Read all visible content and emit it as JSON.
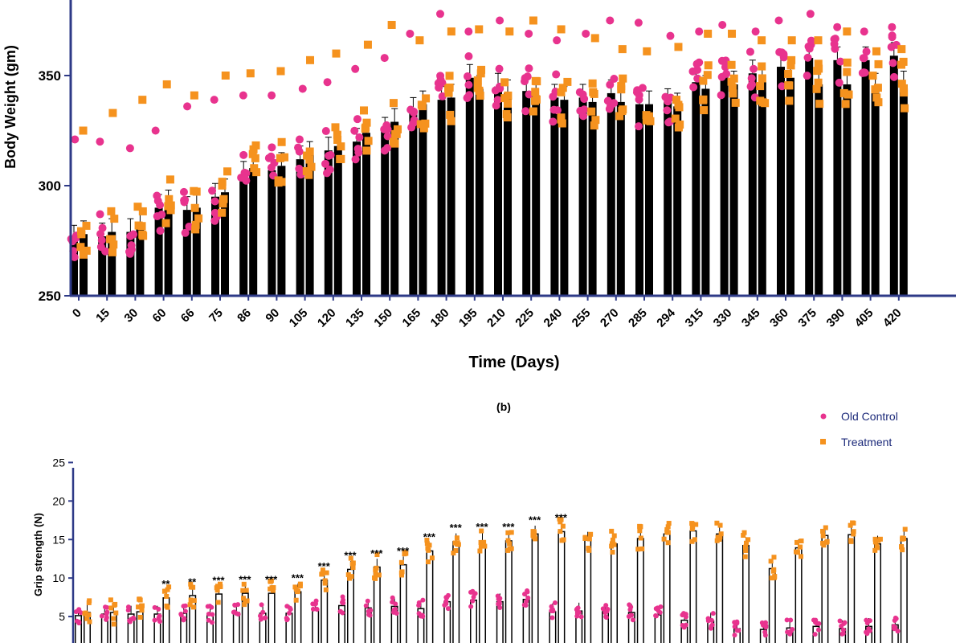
{
  "panel_label": "(b)",
  "legend": [
    {
      "label": "Old Control",
      "color": "#e8338e",
      "marker": "circle"
    },
    {
      "label": "Treatment",
      "color": "#f5921e",
      "marker": "square"
    }
  ],
  "colors": {
    "old_control": "#e8338e",
    "treatment": "#f5921e",
    "bar": "#000000",
    "axis": "#2e3a87"
  },
  "chart_data": [
    {
      "type": "bar",
      "title": "",
      "xlabel": "Time (Days)",
      "ylabel": "Body Weight (gm)",
      "ylim": [
        250,
        380
      ],
      "yticks": [
        250,
        300,
        350
      ],
      "categories": [
        "0",
        "15",
        "30",
        "60",
        "66",
        "75",
        "86",
        "90",
        "105",
        "120",
        "135",
        "150",
        "165",
        "180",
        "195",
        "210",
        "225",
        "240",
        "255",
        "270",
        "285",
        "294",
        "315",
        "330",
        "345",
        "360",
        "375",
        "390",
        "405",
        "420"
      ],
      "series": [
        {
          "name": "Old Control",
          "color": "#e8338e",
          "values": [
            276,
            277,
            279,
            290,
            289,
            295,
            305,
            307,
            312,
            316,
            320,
            325,
            334,
            339,
            349,
            345,
            343,
            340,
            340,
            342,
            337,
            338,
            347,
            350,
            351,
            354,
            358,
            357,
            357,
            359
          ]
        },
        {
          "name": "Treatment",
          "color": "#f5921e",
          "values": [
            278,
            279,
            283,
            292,
            290,
            297,
            308,
            309,
            314,
            318,
            324,
            329,
            337,
            340,
            344,
            342,
            341,
            339,
            338,
            338,
            337,
            336,
            344,
            346,
            347,
            349,
            346,
            346,
            345,
            346
          ]
        }
      ],
      "max_points": {
        "Old Control": [
          321,
          320,
          317,
          325,
          336,
          339,
          341,
          341,
          344,
          347,
          353,
          358,
          369,
          378,
          370,
          375,
          369,
          366,
          369,
          375,
          374,
          368,
          370,
          373,
          370,
          375,
          378,
          372,
          370,
          372
        ],
        "Treatment": [
          325,
          333,
          339,
          346,
          341,
          350,
          351,
          352,
          357,
          360,
          364,
          373,
          366,
          370,
          371,
          370,
          375,
          371,
          367,
          362,
          361,
          363,
          369,
          369,
          366,
          366,
          366,
          370,
          361,
          362
        ]
      }
    },
    {
      "type": "bar",
      "title": "",
      "xlabel": "",
      "ylabel": "Grip strength (N)",
      "ylim": [
        0,
        25
      ],
      "yticks": [
        5,
        10,
        15,
        20,
        25
      ],
      "visible_categories": 32,
      "series": [
        {
          "name": "Old Control",
          "color": "#e8338e",
          "values": [
            5.2,
            5.4,
            5.4,
            5.4,
            5.5,
            5.3,
            5.6,
            5.5,
            5.5,
            6.0,
            6.5,
            6.2,
            6.4,
            6.1,
            7.0,
            7.2,
            7.0,
            7.3,
            5.7,
            5.8,
            5.7,
            5.6,
            5.3,
            4.6,
            4.5,
            3.5,
            3.4,
            3.6,
            3.8,
            3.5,
            3.8,
            4.0
          ]
        },
        {
          "name": "Treatment",
          "color": "#f5921e",
          "values": [
            5.6,
            5.6,
            5.7,
            7.5,
            7.8,
            8.0,
            8.1,
            8.1,
            8.3,
            9.8,
            11.2,
            11.5,
            11.8,
            13.6,
            14.8,
            14.9,
            14.9,
            15.8,
            16.1,
            15.0,
            14.5,
            15.2,
            15.8,
            16.2,
            15.8,
            14.3,
            11.3,
            14.0,
            15.6,
            15.7,
            14.5,
            15.2
          ]
        }
      ],
      "significance": [
        "",
        "",
        "",
        "**",
        "**",
        "***",
        "***",
        "***",
        "***",
        "***",
        "***",
        "***",
        "***",
        "***",
        "***",
        "***",
        "***",
        "***",
        "***",
        "",
        "",
        "",
        "",
        "",
        "",
        "",
        "",
        "",
        "",
        "",
        "",
        ""
      ]
    }
  ]
}
